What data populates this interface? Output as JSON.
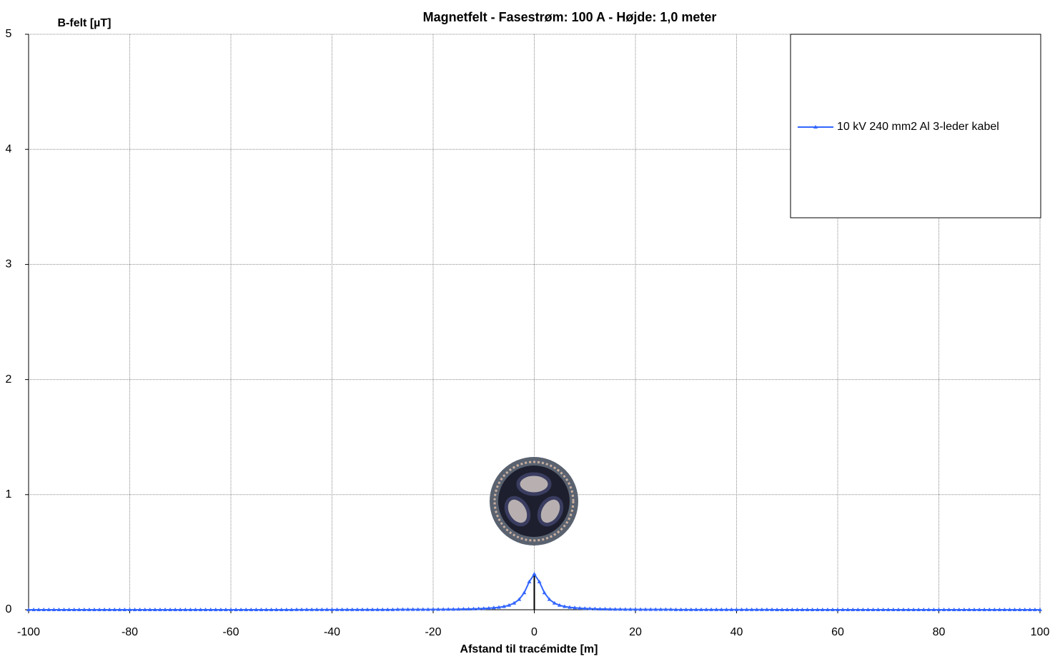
{
  "chart_data": {
    "type": "line",
    "title": "Magnetfelt  -  Fasestrøm: 100 A  -  Højde: 1,0 meter",
    "y_label": "B-felt [µT]",
    "x_label": "Afstand til tracémidte [m]",
    "x": [
      -100,
      -99,
      -98,
      -97,
      -96,
      -95,
      -94,
      -93,
      -92,
      -91,
      -90,
      -89,
      -88,
      -87,
      -86,
      -85,
      -84,
      -83,
      -82,
      -81,
      -80,
      -79,
      -78,
      -77,
      -76,
      -75,
      -74,
      -73,
      -72,
      -71,
      -70,
      -69,
      -68,
      -67,
      -66,
      -65,
      -64,
      -63,
      -62,
      -61,
      -60,
      -59,
      -58,
      -57,
      -56,
      -55,
      -54,
      -53,
      -52,
      -51,
      -50,
      -49,
      -48,
      -47,
      -46,
      -45,
      -44,
      -43,
      -42,
      -41,
      -40,
      -39,
      -38,
      -37,
      -36,
      -35,
      -34,
      -33,
      -32,
      -31,
      -30,
      -29,
      -28,
      -27,
      -26,
      -25,
      -24,
      -23,
      -22,
      -21,
      -20,
      -19,
      -18,
      -17,
      -16,
      -15,
      -14,
      -13,
      -12,
      -11,
      -10,
      -9,
      -8,
      -7,
      -6,
      -5,
      -4,
      -3,
      -2,
      -1,
      0,
      1,
      2,
      3,
      4,
      5,
      6,
      7,
      8,
      9,
      10,
      11,
      12,
      13,
      14,
      15,
      16,
      17,
      18,
      19,
      20,
      21,
      22,
      23,
      24,
      25,
      26,
      27,
      28,
      29,
      30,
      31,
      32,
      33,
      34,
      35,
      36,
      37,
      38,
      39,
      40,
      41,
      42,
      43,
      44,
      45,
      46,
      47,
      48,
      49,
      50,
      51,
      52,
      53,
      54,
      55,
      56,
      57,
      58,
      59,
      60,
      61,
      62,
      63,
      64,
      65,
      66,
      67,
      68,
      69,
      70,
      71,
      72,
      73,
      74,
      75,
      76,
      77,
      78,
      79,
      80,
      81,
      82,
      83,
      84,
      85,
      86,
      87,
      88,
      89,
      90,
      91,
      92,
      93,
      94,
      95,
      96,
      97,
      98,
      99,
      100
    ],
    "series": [
      {
        "name": "10 kV 240 mm2 Al 3-leder kabel",
        "color": "#3366ff",
        "values": [
          0,
          0,
          0,
          0,
          0,
          0,
          0,
          0,
          0,
          0,
          0,
          0,
          0,
          0,
          0,
          0,
          0,
          0,
          0,
          0,
          0,
          0,
          0,
          0,
          0,
          0,
          0,
          0,
          0,
          0,
          0,
          0,
          0,
          0,
          0,
          0,
          0,
          0,
          0,
          0,
          0,
          0,
          0,
          0,
          0,
          0,
          0,
          0,
          0,
          0,
          0,
          0,
          0,
          0.001,
          0.001,
          0.001,
          0.001,
          0.001,
          0.001,
          0.001,
          0.001,
          0.001,
          0.001,
          0.001,
          0.001,
          0.001,
          0.001,
          0.001,
          0.001,
          0.001,
          0.001,
          0.001,
          0.001,
          0.002,
          0.002,
          0.002,
          0.002,
          0.002,
          0.002,
          0.002,
          0.003,
          0.003,
          0.003,
          0.004,
          0.004,
          0.005,
          0.006,
          0.006,
          0.008,
          0.009,
          0.011,
          0.013,
          0.017,
          0.021,
          0.028,
          0.039,
          0.057,
          0.089,
          0.147,
          0.243,
          0.31,
          0.243,
          0.147,
          0.089,
          0.057,
          0.039,
          0.028,
          0.021,
          0.017,
          0.013,
          0.011,
          0.009,
          0.008,
          0.006,
          0.006,
          0.005,
          0.004,
          0.004,
          0.003,
          0.003,
          0.003,
          0.002,
          0.002,
          0.002,
          0.002,
          0.002,
          0.002,
          0.002,
          0.001,
          0.001,
          0.001,
          0.001,
          0.001,
          0.001,
          0.001,
          0.001,
          0.001,
          0.001,
          0.001,
          0.001,
          0.001,
          0.001,
          0.001,
          0.001,
          0.001,
          0.001,
          0.001,
          0.001,
          0,
          0,
          0,
          0,
          0,
          0,
          0,
          0,
          0,
          0,
          0,
          0,
          0,
          0,
          0,
          0,
          0,
          0,
          0,
          0,
          0,
          0,
          0,
          0,
          0,
          0,
          0,
          0,
          0,
          0,
          0,
          0,
          0,
          0,
          0,
          0,
          0,
          0,
          0,
          0,
          0,
          0,
          0,
          0,
          0,
          0,
          0,
          0,
          0,
          0,
          0,
          0,
          0
        ]
      }
    ],
    "xlim": [
      -100,
      100
    ],
    "xticks": [
      -100,
      -80,
      -60,
      -40,
      -20,
      0,
      20,
      40,
      60,
      80,
      100
    ],
    "ylim": [
      0,
      5
    ],
    "yticks": [
      0,
      1,
      2,
      3,
      4,
      5
    ],
    "grid": true,
    "legend": "upper right"
  }
}
